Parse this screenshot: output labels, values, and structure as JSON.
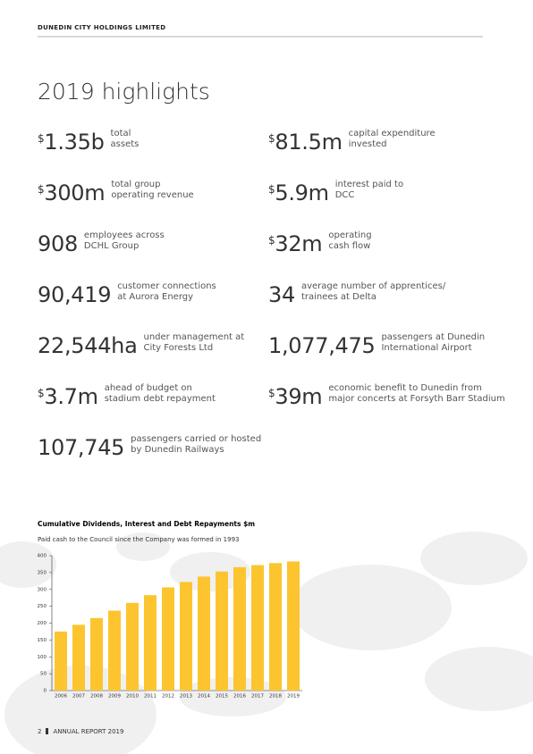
{
  "header": {
    "title": "DUNEDIN CITY HOLDINGS LIMITED"
  },
  "heading": "2019 highlights",
  "highlights": [
    [
      {
        "prefix": "$",
        "figure": "1.35b",
        "lines": [
          "total",
          "assets"
        ]
      },
      {
        "prefix": "$",
        "figure": "81.5m",
        "lines": [
          "capital expenditure",
          "invested"
        ]
      }
    ],
    [
      {
        "prefix": "$",
        "figure": "300m",
        "lines": [
          "total group",
          "operating revenue"
        ]
      },
      {
        "prefix": "$",
        "figure": "5.9m",
        "lines": [
          "interest paid to",
          "DCC"
        ]
      }
    ],
    [
      {
        "figure": "908",
        "lines": [
          "employees across",
          "DCHL Group"
        ]
      },
      {
        "prefix": "$",
        "figure": "32m",
        "lines": [
          "operating",
          "cash flow"
        ]
      }
    ],
    [
      {
        "figure": "90,419",
        "lines": [
          "customer connections",
          "at Aurora Energy"
        ]
      },
      {
        "figure": "34",
        "lines": [
          "average number of apprentices/",
          "trainees at Delta"
        ]
      }
    ],
    [
      {
        "figure": "22,544ha",
        "lines": [
          "under management at",
          "City Forests Ltd"
        ]
      },
      {
        "figure": "1,077,475",
        "lines": [
          "passengers at Dunedin",
          "International Airport"
        ]
      }
    ],
    [
      {
        "prefix": "$",
        "figure": "3.7m",
        "lines": [
          "ahead of budget on",
          "stadium debt repayment"
        ]
      },
      {
        "prefix": "$",
        "figure": "39m",
        "lines": [
          "economic benefit to Dunedin from",
          "major concerts at Forsyth Barr Stadium"
        ]
      }
    ],
    [
      {
        "figure": "107,745",
        "lines": [
          "passengers carried or hosted",
          "by Dunedin Railways"
        ]
      }
    ]
  ],
  "chart_data": {
    "type": "bar",
    "title": "Cumulative Dividends, Interest and Debt Repayments  $m",
    "subtitle": "Paid cash to the Council since the Company was formed in 1993",
    "categories": [
      "2006",
      "2007",
      "2008",
      "2009",
      "2010",
      "2011",
      "2012",
      "2013",
      "2014",
      "2015",
      "2016",
      "2017",
      "2018",
      "2019"
    ],
    "values": [
      175,
      195,
      215,
      237,
      260,
      283,
      306,
      322,
      338,
      353,
      366,
      372,
      378,
      383
    ],
    "color": "#fcc52f",
    "ylim": [
      0,
      400
    ],
    "yticks": [
      0,
      50,
      100,
      150,
      200,
      250,
      300,
      350,
      400
    ],
    "grid": false
  },
  "footer": {
    "page": "2",
    "text": "ANNUAL REPORT 2019"
  }
}
